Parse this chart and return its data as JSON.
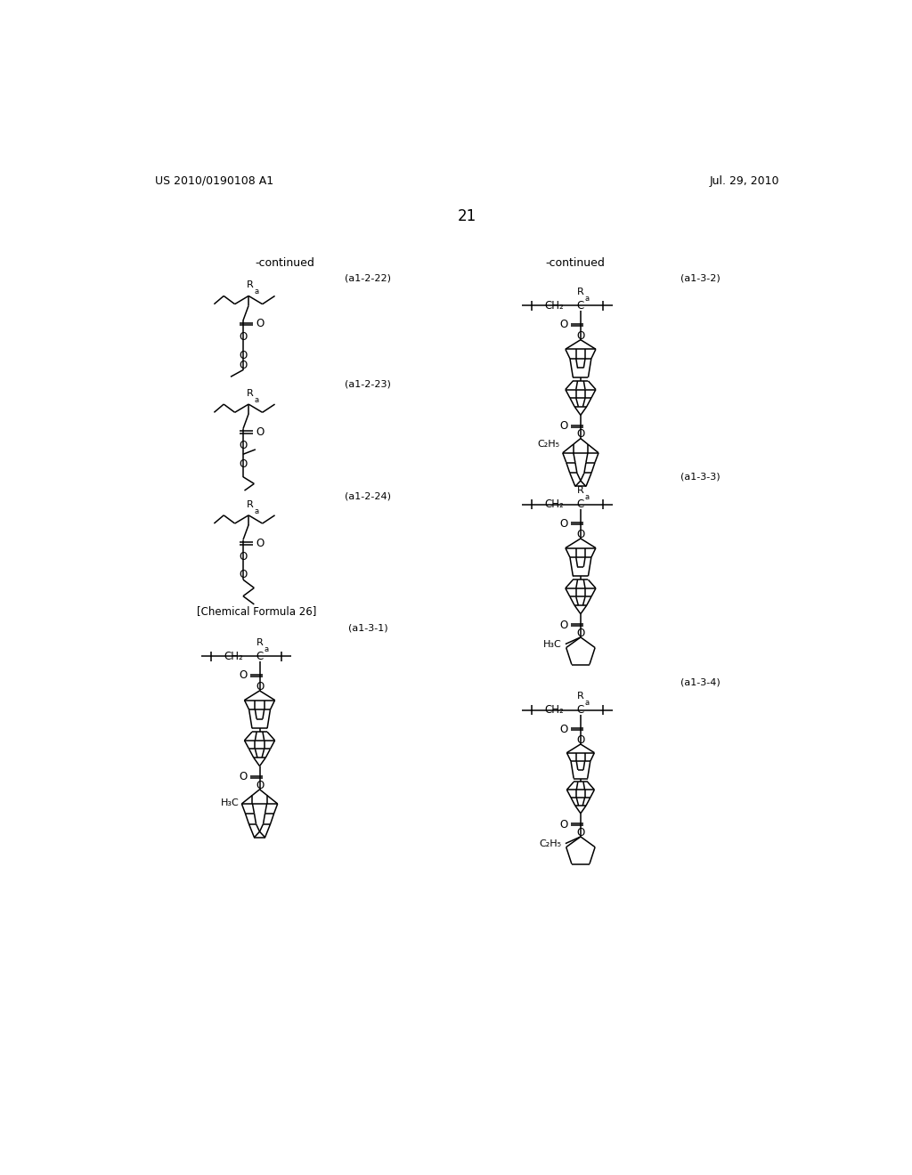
{
  "title_left": "US 2010/0190108 A1",
  "title_right": "Jul. 29, 2010",
  "page_number": "21",
  "continued_left": "-continued",
  "continued_right": "-continued",
  "label_a1_2_22": "(a1-2-22)",
  "label_a1_2_23": "(a1-2-23)",
  "label_a1_2_24": "(a1-2-24)",
  "label_chem26": "[Chemical Formula 26]",
  "label_a1_3_1": "(a1-3-1)",
  "label_a1_3_2": "(a1-3-2)",
  "label_a1_3_3": "(a1-3-3)",
  "label_a1_3_4": "(a1-3-4)"
}
